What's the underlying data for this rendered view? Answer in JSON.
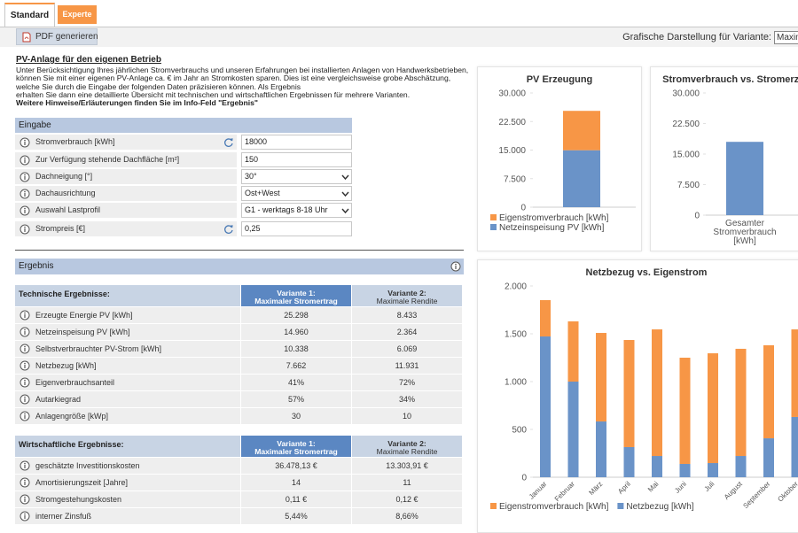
{
  "tabs": [
    "Standard",
    "Experte"
  ],
  "toolbar": {
    "button": "PDF generieren",
    "variant_label": "Grafische Darstellung für Variante:",
    "variant_select": "Maximaler Stromertrag"
  },
  "intro": {
    "title": "PV-Anlage für den eigenen Betrieb",
    "lines": [
      "Unter Berücksichtigung Ihres jährlichen Stromverbrauchs und unseren Erfahrungen bei installierten Anlagen von Handwerksbetrieben,",
      "können Sie mit einer eigenen PV-Anlage ca. € im Jahr an Stromkosten sparen. Dies ist eine vergleichsweise grobe Abschätzung,",
      "welche Sie durch die Eingabe der folgenden Daten präzisieren können. Als Ergebnis",
      "erhalten Sie dann eine detaillierte Übersicht mit technischen und wirtschaftlichen Ergebnissen für mehrere Varianten."
    ],
    "note": "Weitere Hinweise/Erläuterungen finden Sie im Info-Feld \"Ergebnis\""
  },
  "input": {
    "title": "Eingabe",
    "rows": [
      {
        "label": "Stromverbrauch [kWh]",
        "value": "18000",
        "kind": "text",
        "refresh": true
      },
      {
        "label": "Zur Verfügung stehende Dachfläche [m²]",
        "value": "150",
        "kind": "text"
      },
      {
        "label": "Dachneigung [°]",
        "value": "30°",
        "kind": "select"
      },
      {
        "label": "Dachausrichtung",
        "value": "Ost+West",
        "kind": "select"
      },
      {
        "label": "Auswahl Lastprofil",
        "value": "G1 - werktags 8-18 Uhr",
        "kind": "select"
      },
      {
        "label": "Strompreis [€]",
        "value": "0,25",
        "kind": "text",
        "refresh": true
      }
    ]
  },
  "result": {
    "title": "Ergebnis",
    "tables": [
      {
        "title": "Technische Ergebnisse:",
        "variants": [
          {
            "name": "Variante 1:",
            "sub": "Maximaler Stromertrag"
          },
          {
            "name": "Variante 2:",
            "sub": "Maximale Rendite"
          }
        ],
        "rows": [
          [
            "Erzeugte Energie PV [kWh]",
            "25.298",
            "8.433"
          ],
          [
            "Netzeinspeisung PV [kWh]",
            "14.960",
            "2.364"
          ],
          [
            "Selbstverbrauchter PV-Strom [kWh]",
            "10.338",
            "6.069"
          ],
          [
            "Netzbezug [kWh]",
            "7.662",
            "11.931"
          ],
          [
            "Eigenverbrauchsanteil",
            "41%",
            "72%"
          ],
          [
            "Autarkiegrad",
            "57%",
            "34%"
          ],
          [
            "Anlagengröße [kWp]",
            "30",
            "10"
          ]
        ]
      },
      {
        "title": "Wirtschaftliche Ergebnisse:",
        "variants": [
          {
            "name": "Variante 1:",
            "sub": "Maximaler Stromertrag"
          },
          {
            "name": "Variante 2:",
            "sub": "Maximale Rendite"
          }
        ],
        "rows": [
          [
            "geschätzte Investitionskosten",
            "36.478,13 €",
            "13.303,91 €"
          ],
          [
            "Amortisierungszeit [Jahre]",
            "14",
            "11"
          ],
          [
            "Stromgestehungskosten",
            "0,11 €",
            "0,12 €"
          ],
          [
            "interner Zinsfuß",
            "5,44%",
            "8,66%"
          ]
        ]
      }
    ]
  },
  "chart_data": [
    {
      "type": "bar",
      "stacked": true,
      "title": "PV Erzeugung",
      "categories": [
        null
      ],
      "series": [
        {
          "name": "Eigenstromverbrauch [kWh]",
          "color": "#f79646",
          "values": [
            10338
          ]
        },
        {
          "name": "Netzeinspeisung PV [kWh]",
          "color": "#6a93c8",
          "values": [
            14960
          ]
        }
      ],
      "ylim": [
        0,
        30000
      ],
      "yticks": [
        0,
        {
          "value": 7500,
          "label": "7.500"
        },
        {
          "value": 15000,
          "label": "15.000"
        },
        {
          "value": 22500,
          "label": "22.500"
        },
        {
          "value": 30000,
          "label": "30.000"
        }
      ],
      "legend": "bottom-left"
    },
    {
      "type": "bar",
      "stacked": false,
      "title": "Stromverbrauch vs. Stromerzeugung",
      "categories": [
        "Gesamter Stromverbrauch [kWh]"
      ],
      "series": [
        {
          "color": "#6a93c8",
          "values": [
            18000
          ]
        }
      ],
      "ylim": [
        0,
        30000
      ],
      "yticks": [
        0,
        {
          "value": 7500,
          "label": "7.500"
        },
        {
          "value": 15000,
          "label": "15.000"
        },
        {
          "value": 22500,
          "label": "22.500"
        },
        {
          "value": 30000,
          "label": "30.000"
        }
      ]
    },
    {
      "type": "bar",
      "stacked": true,
      "title": "Netzbezug vs. Eigenstrom",
      "categories": [
        "Januar",
        "Februar",
        "März",
        "April",
        "Mai",
        "Juni",
        "Juli",
        "August",
        "September",
        "Oktober"
      ],
      "series": [
        {
          "name": "Eigenstromverbrauch [kWh]",
          "color": "#f79646",
          "values": [
            380,
            630,
            926,
            1120,
            1324,
            1111,
            1148,
            1121,
            973,
            916
          ]
        },
        {
          "name": "Netzbezug [kWh]",
          "color": "#6a93c8",
          "values": [
            1472,
            1000,
            583,
            315,
            222,
            139,
            148,
            222,
            407,
            630
          ]
        }
      ],
      "ylim": [
        0,
        2000
      ],
      "yticks": [
        0,
        500,
        {
          "value": 1000,
          "label": "1.000"
        },
        {
          "value": 1500,
          "label": "1.500"
        },
        {
          "value": 2000,
          "label": "2.000"
        }
      ],
      "legend": "bottom-left"
    }
  ]
}
